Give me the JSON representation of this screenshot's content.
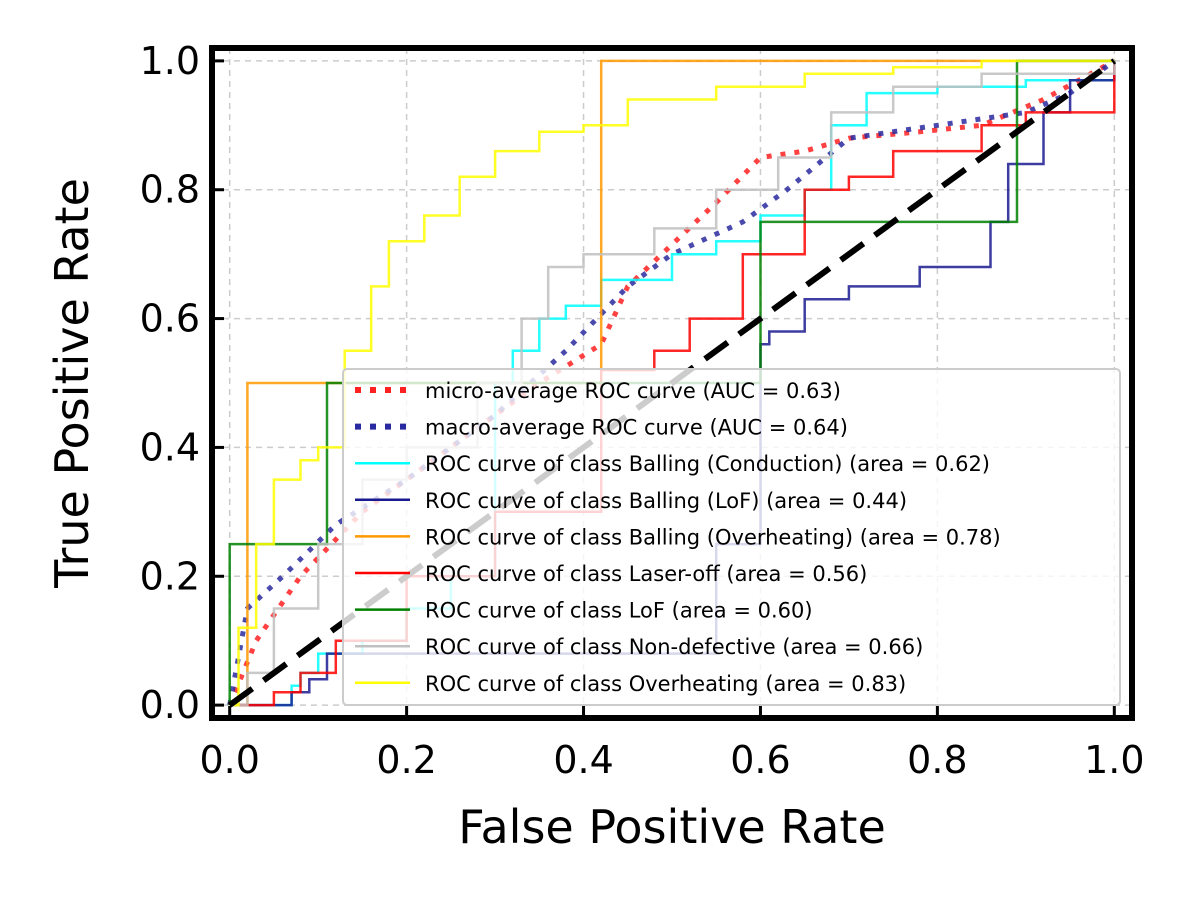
{
  "chart_data": {
    "type": "line",
    "title": "",
    "xlabel": "False Positive Rate",
    "ylabel": "True Positive Rate",
    "xlim": [
      -0.02,
      1.02
    ],
    "ylim": [
      -0.02,
      1.02
    ],
    "xticks": [
      "0.0",
      "0.2",
      "0.4",
      "0.6",
      "0.8",
      "1.0"
    ],
    "yticks": [
      "0.0",
      "0.2",
      "0.4",
      "0.6",
      "0.8",
      "1.0"
    ],
    "grid": true,
    "legend_position": "lower-right",
    "series": [
      {
        "name": "micro-average ROC curve (AUC = 0.63)",
        "color": "#ff2020",
        "style": "dotted",
        "x": [
          0,
          0.03,
          0.08,
          0.15,
          0.25,
          0.35,
          0.42,
          0.45,
          0.55,
          0.6,
          0.65,
          0.7,
          0.78,
          0.85,
          0.92,
          1.0
        ],
        "y": [
          0,
          0.1,
          0.2,
          0.3,
          0.4,
          0.5,
          0.56,
          0.65,
          0.78,
          0.85,
          0.86,
          0.88,
          0.89,
          0.9,
          0.94,
          1.0
        ]
      },
      {
        "name": "macro-average ROC curve (AUC = 0.64)",
        "color": "#2a2aa0",
        "style": "dotted",
        "x": [
          0,
          0.02,
          0.06,
          0.12,
          0.2,
          0.3,
          0.38,
          0.45,
          0.5,
          0.58,
          0.63,
          0.7,
          0.8,
          0.9,
          0.95,
          1.0
        ],
        "y": [
          0,
          0.15,
          0.2,
          0.28,
          0.35,
          0.45,
          0.55,
          0.65,
          0.7,
          0.75,
          0.8,
          0.88,
          0.9,
          0.92,
          0.95,
          1.0
        ]
      },
      {
        "name": "ROC curve of class Balling (Conduction) (area = 0.62)",
        "color": "#00ffff",
        "style": "solid",
        "x": [
          0,
          0.05,
          0.07,
          0.08,
          0.1,
          0.15,
          0.2,
          0.25,
          0.3,
          0.32,
          0.35,
          0.38,
          0.42,
          0.45,
          0.5,
          0.55,
          0.6,
          0.65,
          0.68,
          0.72,
          0.8,
          0.9,
          1.0
        ],
        "y": [
          0,
          0,
          0.03,
          0.05,
          0.08,
          0.1,
          0.15,
          0.2,
          0.5,
          0.55,
          0.6,
          0.62,
          0.66,
          0.66,
          0.7,
          0.72,
          0.76,
          0.8,
          0.9,
          0.95,
          0.96,
          0.97,
          1.0
        ]
      },
      {
        "name": "ROC curve of class Balling (LoF) (area = 0.44)",
        "color": "#1a1a90",
        "style": "solid",
        "x": [
          0,
          0.02,
          0.07,
          0.09,
          0.11,
          0.4,
          0.55,
          0.6,
          0.61,
          0.65,
          0.7,
          0.78,
          0.86,
          0.88,
          0.92,
          0.95,
          1.0
        ],
        "y": [
          0,
          0,
          0.02,
          0.04,
          0.08,
          0.08,
          0.25,
          0.56,
          0.58,
          0.63,
          0.65,
          0.68,
          0.75,
          0.84,
          0.92,
          0.97,
          1.0
        ]
      },
      {
        "name": "ROC curve of class Balling (Overheating) (area = 0.78)",
        "color": "#ff9900",
        "style": "solid",
        "x": [
          0,
          0.02,
          0.02,
          0.42,
          0.42,
          1.0
        ],
        "y": [
          0,
          0,
          0.5,
          0.5,
          1.0,
          1.0
        ]
      },
      {
        "name": "ROC curve of class Laser-off (area = 0.56)",
        "color": "#ff0000",
        "style": "solid",
        "x": [
          0,
          0.02,
          0.05,
          0.08,
          0.12,
          0.2,
          0.3,
          0.42,
          0.48,
          0.52,
          0.58,
          0.65,
          0.7,
          0.75,
          0.85,
          0.9,
          1.0
        ],
        "y": [
          0,
          0,
          0.02,
          0.05,
          0.1,
          0.2,
          0.3,
          0.52,
          0.55,
          0.6,
          0.7,
          0.8,
          0.82,
          0.86,
          0.9,
          0.92,
          1.0
        ]
      },
      {
        "name": "ROC curve of class LoF (area = 0.60)",
        "color": "#008000",
        "style": "solid",
        "x": [
          0,
          0.0,
          0.11,
          0.11,
          0.6,
          0.6,
          0.89,
          0.89,
          1.0
        ],
        "y": [
          0,
          0.25,
          0.25,
          0.5,
          0.5,
          0.75,
          0.75,
          1.0,
          1.0
        ]
      },
      {
        "name": "ROC curve of class Non-defective (area = 0.66)",
        "color": "#c0c0c0",
        "style": "solid",
        "x": [
          0,
          0.02,
          0.05,
          0.1,
          0.15,
          0.2,
          0.28,
          0.33,
          0.36,
          0.4,
          0.48,
          0.55,
          0.62,
          0.68,
          0.75,
          0.85,
          1.0
        ],
        "y": [
          0,
          0.05,
          0.15,
          0.25,
          0.35,
          0.4,
          0.5,
          0.6,
          0.68,
          0.7,
          0.74,
          0.8,
          0.85,
          0.92,
          0.96,
          0.98,
          1.0
        ]
      },
      {
        "name": "ROC curve of class Overheating (area = 0.83)",
        "color": "#ffff00",
        "style": "solid",
        "x": [
          0,
          0.01,
          0.03,
          0.05,
          0.08,
          0.1,
          0.13,
          0.16,
          0.18,
          0.22,
          0.26,
          0.3,
          0.35,
          0.4,
          0.45,
          0.55,
          0.65,
          0.75,
          0.85,
          1.0
        ],
        "y": [
          0,
          0.12,
          0.25,
          0.35,
          0.38,
          0.4,
          0.55,
          0.65,
          0.72,
          0.76,
          0.82,
          0.86,
          0.89,
          0.9,
          0.94,
          0.96,
          0.98,
          0.99,
          1.0,
          1.0
        ]
      }
    ],
    "reference_line": {
      "x": [
        0,
        1
      ],
      "y": [
        0,
        1
      ],
      "color": "#000000",
      "style": "dashed"
    }
  }
}
